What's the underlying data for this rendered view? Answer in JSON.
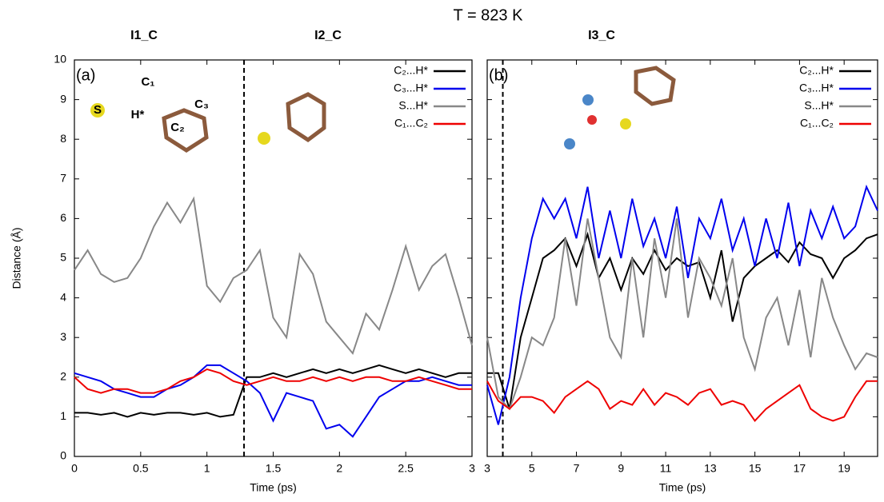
{
  "title": "T = 823 K",
  "chart_data": [
    {
      "type": "line",
      "label": "(a)",
      "annotations": [
        "I1_C",
        "I2_C"
      ],
      "molecule_labels": [
        "C₁",
        "C₃",
        "C₂",
        "H*",
        "S"
      ],
      "xlabel": "Time (ps)",
      "ylabel": "Distance (Å)",
      "xlim": [
        0,
        3
      ],
      "ylim": [
        0,
        10
      ],
      "xticks": [
        0,
        0.5,
        1,
        1.5,
        2,
        2.5,
        3
      ],
      "yticks": [
        0,
        1,
        2,
        3,
        4,
        5,
        6,
        7,
        8,
        9,
        10
      ],
      "show_ytick_labels": true,
      "grid": false,
      "legend": "upper right",
      "vline": 1.28,
      "x": [
        0,
        0.1,
        0.2,
        0.3,
        0.4,
        0.5,
        0.6,
        0.7,
        0.8,
        0.9,
        1,
        1.1,
        1.2,
        1.3,
        1.4,
        1.5,
        1.6,
        1.7,
        1.8,
        1.9,
        2,
        2.1,
        2.2,
        2.3,
        2.4,
        2.5,
        2.6,
        2.7,
        2.8,
        2.9,
        3
      ],
      "series": [
        {
          "name": "C₂...H*",
          "color": "#000000",
          "values": [
            1.1,
            1.1,
            1.05,
            1.1,
            1.0,
            1.1,
            1.05,
            1.1,
            1.1,
            1.05,
            1.1,
            1.0,
            1.05,
            2.0,
            2.0,
            2.1,
            2.0,
            2.1,
            2.2,
            2.1,
            2.2,
            2.1,
            2.2,
            2.3,
            2.2,
            2.1,
            2.2,
            2.1,
            2.0,
            2.1,
            2.1
          ]
        },
        {
          "name": "C₃...H*",
          "color": "#0000ee",
          "values": [
            2.1,
            2.0,
            1.9,
            1.7,
            1.6,
            1.5,
            1.5,
            1.7,
            1.8,
            2.0,
            2.3,
            2.3,
            2.1,
            1.9,
            1.6,
            0.9,
            1.6,
            1.5,
            1.4,
            0.7,
            0.8,
            0.5,
            1.0,
            1.5,
            1.7,
            1.9,
            1.9,
            2.0,
            1.9,
            1.8,
            1.8
          ]
        },
        {
          "name": "S...H*",
          "color": "#888888",
          "values": [
            4.7,
            5.2,
            4.6,
            4.4,
            4.5,
            5.0,
            5.8,
            6.4,
            5.9,
            6.5,
            4.3,
            3.9,
            4.5,
            4.7,
            5.2,
            3.5,
            3.0,
            5.1,
            4.6,
            3.4,
            3.0,
            2.6,
            3.6,
            3.2,
            4.2,
            5.3,
            4.2,
            4.8,
            5.1,
            4.0,
            2.8
          ]
        },
        {
          "name": "C₁...C₂",
          "color": "#ee0000",
          "values": [
            2.0,
            1.7,
            1.6,
            1.7,
            1.7,
            1.6,
            1.6,
            1.7,
            1.9,
            2.0,
            2.2,
            2.1,
            1.9,
            1.8,
            1.9,
            2.0,
            1.9,
            1.9,
            2.0,
            1.9,
            2.0,
            1.9,
            2.0,
            2.0,
            1.9,
            1.9,
            2.0,
            1.9,
            1.8,
            1.7,
            1.7
          ]
        }
      ]
    },
    {
      "type": "line",
      "label": "(b)",
      "annotations": [
        "I3_C"
      ],
      "xlabel": "Time (ps)",
      "xlim": [
        3,
        20.5
      ],
      "ylim": [
        0,
        10
      ],
      "xticks": [
        3,
        5,
        7,
        9,
        11,
        13,
        15,
        17,
        19
      ],
      "yticks": [
        0,
        1,
        2,
        3,
        4,
        5,
        6,
        7,
        8,
        9,
        10
      ],
      "show_ytick_labels": false,
      "grid": false,
      "legend": "upper right",
      "vline": 3.7,
      "x": [
        3,
        3.5,
        4,
        4.5,
        5,
        5.5,
        6,
        6.5,
        7,
        7.5,
        8,
        8.5,
        9,
        9.5,
        10,
        10.5,
        11,
        11.5,
        12,
        12.5,
        13,
        13.5,
        14,
        14.5,
        15,
        15.5,
        16,
        16.5,
        17,
        17.5,
        18,
        18.5,
        19,
        19.5,
        20,
        20.5
      ],
      "series": [
        {
          "name": "C₂...H*",
          "color": "#000000",
          "values": [
            2.1,
            2.1,
            1.2,
            3.0,
            4.0,
            5.0,
            5.2,
            5.5,
            4.8,
            5.6,
            4.5,
            5.0,
            4.2,
            5.0,
            4.6,
            5.2,
            4.7,
            5.0,
            4.8,
            4.9,
            4.0,
            5.2,
            3.4,
            4.5,
            4.8,
            5.0,
            5.2,
            4.9,
            5.4,
            5.1,
            5.0,
            4.5,
            5.0,
            5.2,
            5.5,
            5.6
          ]
        },
        {
          "name": "C₃...H*",
          "color": "#0000ee",
          "values": [
            1.8,
            0.8,
            2.0,
            4.0,
            5.5,
            6.5,
            6.0,
            6.5,
            5.5,
            6.8,
            5.0,
            6.2,
            5.0,
            6.5,
            5.3,
            6.0,
            5.0,
            6.3,
            4.5,
            6.0,
            5.5,
            6.5,
            5.2,
            6.0,
            4.8,
            6.0,
            5.0,
            6.4,
            4.8,
            6.2,
            5.5,
            6.3,
            5.5,
            5.8,
            6.8,
            6.2
          ]
        },
        {
          "name": "S...H*",
          "color": "#888888",
          "values": [
            3.0,
            1.5,
            1.2,
            2.0,
            3.0,
            2.8,
            3.5,
            5.5,
            3.8,
            6.0,
            4.5,
            3.0,
            2.5,
            5.0,
            3.0,
            5.5,
            4.0,
            6.0,
            3.5,
            5.0,
            4.5,
            3.8,
            5.0,
            3.0,
            2.2,
            3.5,
            4.0,
            2.8,
            4.2,
            2.5,
            4.5,
            3.5,
            2.8,
            2.2,
            2.6,
            2.5
          ]
        },
        {
          "name": "C₁...C₂",
          "color": "#ee0000",
          "values": [
            1.9,
            1.4,
            1.2,
            1.5,
            1.5,
            1.4,
            1.1,
            1.5,
            1.7,
            1.9,
            1.7,
            1.2,
            1.4,
            1.3,
            1.7,
            1.3,
            1.6,
            1.5,
            1.3,
            1.6,
            1.7,
            1.3,
            1.4,
            1.3,
            0.9,
            1.2,
            1.4,
            1.6,
            1.8,
            1.2,
            1.0,
            0.9,
            1.0,
            1.5,
            1.9,
            1.9
          ]
        }
      ]
    }
  ]
}
